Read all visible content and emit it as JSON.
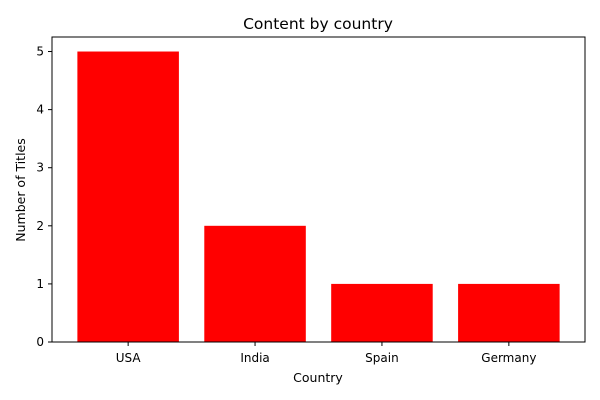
{
  "chart_data": {
    "type": "bar",
    "title": "Content by country",
    "xlabel": "Country",
    "ylabel": "Number of Titles",
    "categories": [
      "USA",
      "India",
      "Spain",
      "Germany"
    ],
    "values": [
      5,
      2,
      1,
      1
    ],
    "ylim": [
      0,
      5.25
    ],
    "yticks": [
      0,
      1,
      2,
      3,
      4,
      5
    ],
    "bar_color": "#ff0000",
    "grid": false,
    "legend": "none"
  }
}
